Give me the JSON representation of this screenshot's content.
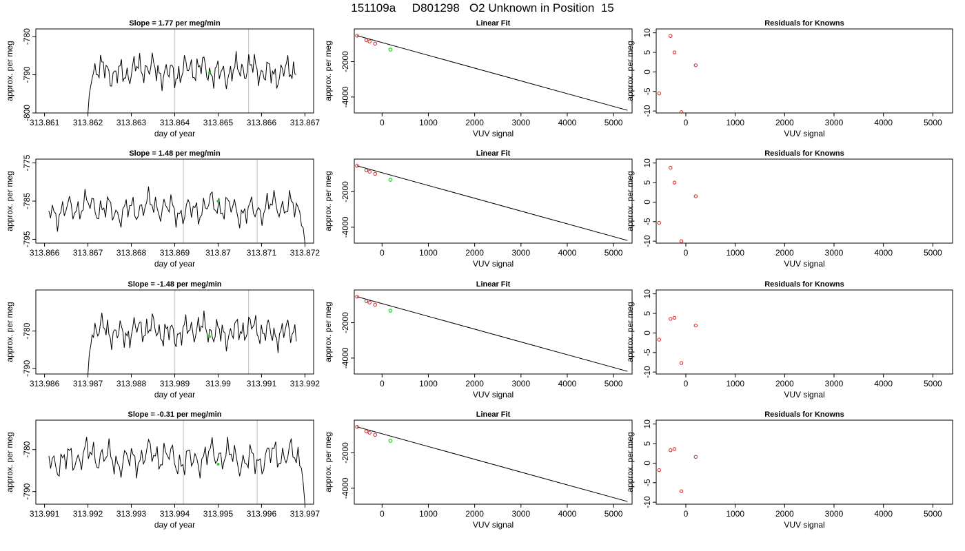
{
  "title": "151109a     D801298   O2 Unknown in Position  15",
  "colors": {
    "trace": "#000000",
    "known_point": "#cc2222",
    "unknown_point": "#22cc22",
    "vline": "#c8c8c8"
  },
  "chart_data": [
    {
      "type": "line",
      "title": "Slope =  1.77  per meg/min",
      "xlabel": "day of year",
      "ylabel": "approx. per meg",
      "xlim": [
        313.8608,
        313.8672
      ],
      "ylim": [
        -800,
        -778
      ],
      "xticks": [
        313.861,
        313.862,
        313.863,
        313.864,
        313.865,
        313.866,
        313.867
      ],
      "yticks": [
        -800,
        -790,
        -780
      ],
      "trace_x_range": [
        313.862,
        313.8668
      ],
      "trace_start": [
        -800,
        -795,
        -793
      ],
      "trace_base": -789,
      "trace_drift_per_day": 900,
      "vlines": [
        313.864,
        313.8657
      ],
      "unknown_point": [
        313.8648,
        -789.5
      ]
    },
    {
      "type": "scatter",
      "title": "Linear Fit",
      "xlabel": "VUV signal",
      "ylabel": "approx. per meg",
      "xlim": [
        -600,
        5400
      ],
      "ylim": [
        -4900,
        -150
      ],
      "xticks": [
        0,
        1000,
        2000,
        3000,
        4000,
        5000
      ],
      "yticks": [
        -4000,
        -2000
      ],
      "knowns": [
        [
          -540,
          -530
        ],
        [
          -340,
          -780
        ],
        [
          -270,
          -860
        ],
        [
          -150,
          -980
        ]
      ],
      "unknown": [
        180,
        -1320
      ],
      "fit_line": [
        [
          -540,
          -530
        ],
        [
          5300,
          -4750
        ]
      ]
    },
    {
      "type": "scatter",
      "title": "Residuals for Knowns",
      "xlabel": "VUV signal",
      "ylabel": "approx. per meg",
      "xlim": [
        -600,
        5400
      ],
      "ylim": [
        -10.5,
        11
      ],
      "xticks": [
        0,
        1000,
        2000,
        3000,
        4000,
        5000
      ],
      "yticks": [
        -10,
        -5,
        0,
        5,
        10
      ],
      "points": [
        [
          -540,
          -5.5
        ],
        [
          -310,
          9.2
        ],
        [
          -230,
          5.0
        ],
        [
          -90,
          -10.3
        ],
        [
          200,
          1.7
        ]
      ]
    },
    {
      "type": "line",
      "title": "Slope =  1.48  per meg/min",
      "xlabel": "day of year",
      "ylabel": "approx. per meg",
      "xlim": [
        313.8658,
        313.8722
      ],
      "ylim": [
        -796,
        -774
      ],
      "xticks": [
        313.866,
        313.867,
        313.868,
        313.869,
        313.87,
        313.871,
        313.872
      ],
      "yticks": [
        -795,
        -785,
        -775
      ],
      "trace_x_range": [
        313.8661,
        313.872
      ],
      "trace_end": [
        -792,
        -796
      ],
      "trace_base": -787,
      "trace_drift_per_day": 700,
      "vlines": [
        313.8692,
        313.8709
      ],
      "unknown_point": [
        313.87,
        -785.0
      ]
    },
    {
      "type": "scatter",
      "title": "Linear Fit",
      "xlabel": "VUV signal",
      "ylabel": "approx. per meg",
      "xlim": [
        -600,
        5400
      ],
      "ylim": [
        -4900,
        -150
      ],
      "xticks": [
        0,
        1000,
        2000,
        3000,
        4000,
        5000
      ],
      "yticks": [
        -4000,
        -2000
      ],
      "knowns": [
        [
          -540,
          -530
        ],
        [
          -340,
          -780
        ],
        [
          -270,
          -860
        ],
        [
          -150,
          -980
        ]
      ],
      "unknown": [
        180,
        -1320
      ],
      "fit_line": [
        [
          -540,
          -530
        ],
        [
          5300,
          -4750
        ]
      ]
    },
    {
      "type": "scatter",
      "title": "Residuals for Knowns",
      "xlabel": "VUV signal",
      "ylabel": "approx. per meg",
      "xlim": [
        -600,
        5400
      ],
      "ylim": [
        -10.5,
        11
      ],
      "xticks": [
        0,
        1000,
        2000,
        3000,
        4000,
        5000
      ],
      "yticks": [
        -10,
        -5,
        0,
        5,
        10
      ],
      "points": [
        [
          -540,
          -5.3
        ],
        [
          -310,
          8.8
        ],
        [
          -230,
          5.0
        ],
        [
          -90,
          -10.0
        ],
        [
          200,
          1.5
        ]
      ]
    },
    {
      "type": "line",
      "title": "Slope =  -1.48  per meg/min",
      "xlabel": "day of year",
      "ylabel": "approx. per meg",
      "xlim": [
        313.9858,
        313.9922
      ],
      "ylim": [
        -791.5,
        -769
      ],
      "xticks": [
        313.986,
        313.987,
        313.988,
        313.989,
        313.99,
        313.991,
        313.992
      ],
      "yticks": [
        -790,
        -780
      ],
      "trace_x_range": [
        313.987,
        313.9918
      ],
      "trace_start": [
        -791.5,
        -786,
        -784
      ],
      "trace_base": -780,
      "trace_drift_per_day": -500,
      "vlines": [
        313.989,
        313.9907
      ],
      "unknown_point": [
        313.9898,
        -781.5
      ]
    },
    {
      "type": "scatter",
      "title": "Linear Fit",
      "xlabel": "VUV signal",
      "ylabel": "approx. per meg",
      "xlim": [
        -600,
        5400
      ],
      "ylim": [
        -4900,
        -150
      ],
      "xticks": [
        0,
        1000,
        2000,
        3000,
        4000,
        5000
      ],
      "yticks": [
        -4000,
        -2000
      ],
      "knowns": [
        [
          -540,
          -530
        ],
        [
          -340,
          -780
        ],
        [
          -270,
          -860
        ],
        [
          -150,
          -980
        ]
      ],
      "unknown": [
        180,
        -1320
      ],
      "fit_line": [
        [
          -540,
          -530
        ],
        [
          5300,
          -4750
        ]
      ]
    },
    {
      "type": "scatter",
      "title": "Residuals for Knowns",
      "xlabel": "VUV signal",
      "ylabel": "approx. per meg",
      "xlim": [
        -600,
        5400
      ],
      "ylim": [
        -10.5,
        11
      ],
      "points": [
        [
          -540,
          -1.7
        ],
        [
          -310,
          3.6
        ],
        [
          -230,
          3.9
        ],
        [
          -90,
          -7.7
        ],
        [
          200,
          1.9
        ]
      ],
      "xticks": [
        0,
        1000,
        2000,
        3000,
        4000,
        5000
      ],
      "yticks": [
        -10,
        -5,
        0,
        5,
        10
      ]
    },
    {
      "type": "line",
      "title": "Slope =  -0.31  per meg/min",
      "xlabel": "day of year",
      "ylabel": "approx. per meg",
      "xlim": [
        313.9908,
        313.9972
      ],
      "ylim": [
        -793,
        -773
      ],
      "xticks": [
        313.991,
        313.992,
        313.993,
        313.994,
        313.995,
        313.996,
        313.997
      ],
      "yticks": [
        -790,
        -780
      ],
      "trace_x_range": [
        313.9911,
        313.997
      ],
      "trace_end": [
        -788,
        -793
      ],
      "trace_base": -782,
      "trace_drift_per_day": -120,
      "vlines": [
        313.9942,
        313.9959
      ],
      "unknown_point": [
        313.995,
        -783.5
      ]
    },
    {
      "type": "scatter",
      "title": "Linear Fit",
      "xlabel": "VUV signal",
      "ylabel": "approx. per meg",
      "xlim": [
        -600,
        5400
      ],
      "ylim": [
        -4900,
        -150
      ],
      "xticks": [
        0,
        1000,
        2000,
        3000,
        4000,
        5000
      ],
      "yticks": [
        -4000,
        -2000
      ],
      "knowns": [
        [
          -540,
          -530
        ],
        [
          -340,
          -780
        ],
        [
          -270,
          -860
        ],
        [
          -150,
          -980
        ]
      ],
      "unknown": [
        180,
        -1320
      ],
      "fit_line": [
        [
          -540,
          -530
        ],
        [
          5300,
          -4750
        ]
      ]
    },
    {
      "type": "scatter",
      "title": "Residuals for Knowns",
      "xlabel": "VUV signal",
      "ylabel": "approx. per meg",
      "xlim": [
        -600,
        5400
      ],
      "ylim": [
        -10.5,
        11
      ],
      "xticks": [
        0,
        1000,
        2000,
        3000,
        4000,
        5000
      ],
      "yticks": [
        -10,
        -5,
        0,
        5,
        10
      ],
      "points": [
        [
          -540,
          -1.8
        ],
        [
          -310,
          3.3
        ],
        [
          -230,
          3.6
        ],
        [
          -90,
          -7.2
        ],
        [
          200,
          1.6
        ]
      ]
    }
  ]
}
